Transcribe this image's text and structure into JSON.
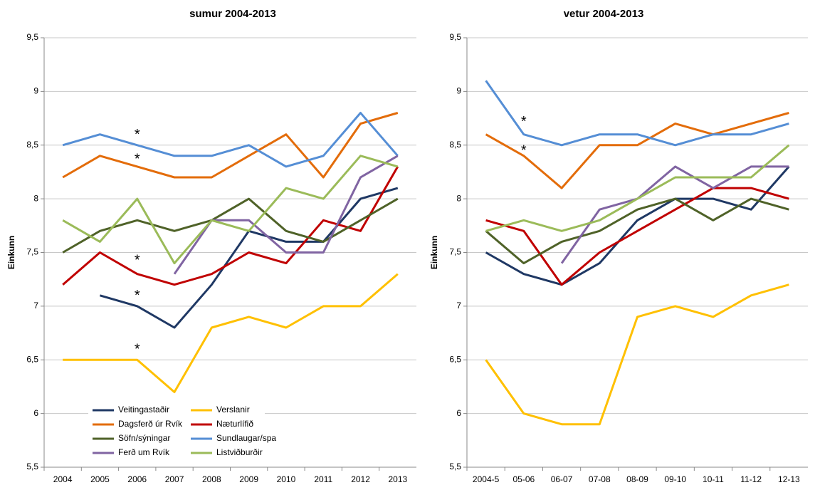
{
  "chart_data": [
    {
      "type": "line",
      "title": "sumur 2004-2013",
      "y_label": "Einkunn",
      "categories": [
        "2004",
        "2005",
        "2006",
        "2007",
        "2008",
        "2009",
        "2010",
        "2011",
        "2012",
        "2013"
      ],
      "ylim": [
        5.5,
        9.5
      ],
      "yticks": [
        {
          "value": 5.5,
          "label": "5,5"
        },
        6,
        {
          "value": 6.5,
          "label": "6,5"
        },
        7,
        {
          "value": 7.5,
          "label": "7,5"
        },
        8,
        {
          "value": 8.5,
          "label": "8,5"
        },
        9,
        {
          "value": 9.5,
          "label": "9,5"
        }
      ],
      "grid": true,
      "legend": "lower-left",
      "series": [
        {
          "name": "Veitingastaðir",
          "color": "#1f3864",
          "values": [
            null,
            7.1,
            7.0,
            6.8,
            7.2,
            7.7,
            7.6,
            7.6,
            8.0,
            8.1
          ]
        },
        {
          "name": "Verslanir",
          "color": "#ffc000",
          "values": [
            6.5,
            6.5,
            6.5,
            6.2,
            6.8,
            6.9,
            6.8,
            7.0,
            7.0,
            7.3
          ]
        },
        {
          "name": "Dagsferð úr Rvík",
          "color": "#e36c0a",
          "values": [
            8.2,
            8.4,
            8.3,
            8.2,
            8.2,
            8.4,
            8.6,
            8.2,
            8.7,
            8.8
          ]
        },
        {
          "name": "Næturlífið",
          "color": "#c00000",
          "values": [
            7.2,
            7.5,
            7.3,
            7.2,
            7.3,
            7.5,
            7.4,
            7.8,
            7.7,
            8.3
          ]
        },
        {
          "name": "Söfn/sýningar",
          "color": "#4f6228",
          "values": [
            7.5,
            7.7,
            7.8,
            7.7,
            7.8,
            8.0,
            7.7,
            7.6,
            7.8,
            8.0
          ]
        },
        {
          "name": "Sundlaugar/spa",
          "color": "#558ed5",
          "values": [
            8.5,
            8.6,
            8.5,
            8.4,
            8.4,
            8.5,
            8.3,
            8.4,
            8.8,
            8.4
          ]
        },
        {
          "name": "Ferð um Rvík",
          "color": "#8064a2",
          "values": [
            null,
            null,
            null,
            7.3,
            7.8,
            7.8,
            7.5,
            7.5,
            8.2,
            8.4
          ]
        },
        {
          "name": "Listviðburðir",
          "color": "#9bbb59",
          "values": [
            7.8,
            7.6,
            8.0,
            7.4,
            7.8,
            7.7,
            8.1,
            8.0,
            8.4,
            8.3
          ]
        }
      ],
      "annotations": [
        {
          "text": "*",
          "x": "2006",
          "y": 8.62
        },
        {
          "text": "*",
          "x": "2006",
          "y": 8.39
        },
        {
          "text": "*",
          "x": "2006",
          "y": 7.45
        },
        {
          "text": "*",
          "x": "2006",
          "y": 7.12
        },
        {
          "text": "*",
          "x": "2006",
          "y": 6.62
        }
      ]
    },
    {
      "type": "line",
      "title": "vetur 2004-2013",
      "y_label": "Einkunn",
      "categories": [
        "2004-5",
        "05-06",
        "06-07",
        "07-08",
        "08-09",
        "09-10",
        "10-11",
        "11-12",
        "12-13"
      ],
      "ylim": [
        5.5,
        9.5
      ],
      "yticks": [
        {
          "value": 5.5,
          "label": "5,5"
        },
        6,
        {
          "value": 6.5,
          "label": "6,5"
        },
        7,
        {
          "value": 7.5,
          "label": "7,5"
        },
        8,
        {
          "value": 8.5,
          "label": "8,5"
        },
        9,
        {
          "value": 9.5,
          "label": "9,5"
        }
      ],
      "grid": true,
      "legend": false,
      "series": [
        {
          "name": "Veitingastaðir",
          "color": "#1f3864",
          "values": [
            7.5,
            7.3,
            7.2,
            7.4,
            7.8,
            8.0,
            8.0,
            7.9,
            8.3
          ]
        },
        {
          "name": "Verslanir",
          "color": "#ffc000",
          "values": [
            6.5,
            6.0,
            5.9,
            5.9,
            6.9,
            7.0,
            6.9,
            7.1,
            7.2
          ]
        },
        {
          "name": "Dagsferð úr Rvík",
          "color": "#e36c0a",
          "values": [
            8.6,
            8.4,
            8.1,
            8.5,
            8.5,
            8.7,
            8.6,
            8.7,
            8.8
          ]
        },
        {
          "name": "Næturlífið",
          "color": "#c00000",
          "values": [
            7.8,
            7.7,
            7.2,
            7.5,
            7.7,
            7.9,
            8.1,
            8.1,
            8.0
          ]
        },
        {
          "name": "Söfn/sýningar",
          "color": "#4f6228",
          "values": [
            7.7,
            7.4,
            7.6,
            7.7,
            7.9,
            8.0,
            7.8,
            8.0,
            7.9
          ]
        },
        {
          "name": "Sundlaugar/spa",
          "color": "#558ed5",
          "values": [
            9.1,
            8.6,
            8.5,
            8.6,
            8.6,
            8.5,
            8.6,
            8.6,
            8.7
          ]
        },
        {
          "name": "Ferð um Rvík",
          "color": "#8064a2",
          "values": [
            null,
            null,
            7.4,
            7.9,
            8.0,
            8.3,
            8.1,
            8.3,
            8.3
          ]
        },
        {
          "name": "Listviðburðir",
          "color": "#9bbb59",
          "values": [
            7.7,
            7.8,
            7.7,
            7.8,
            8.0,
            8.2,
            8.2,
            8.2,
            8.5
          ]
        }
      ],
      "annotations": [
        {
          "text": "*",
          "x": "05-06",
          "y": 8.74
        },
        {
          "text": "*",
          "x": "05-06",
          "y": 8.47
        }
      ]
    }
  ]
}
